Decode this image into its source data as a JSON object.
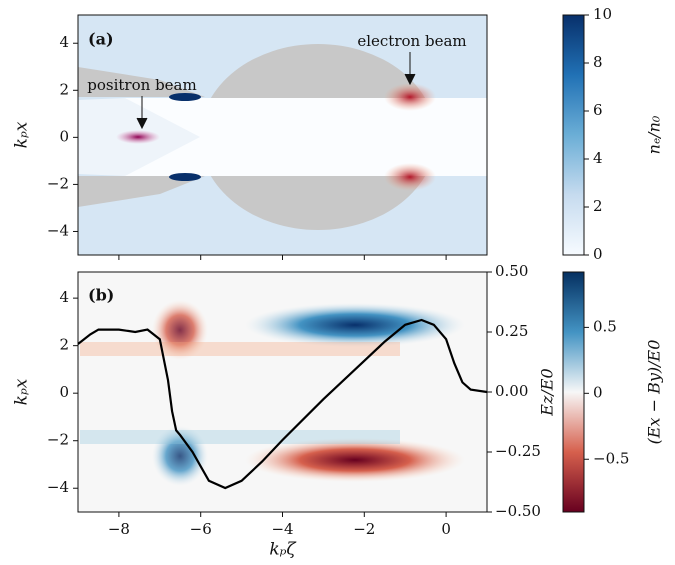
{
  "chart_data": [
    {
      "type": "heatmap",
      "panel_label": "(a)",
      "ylabel": "kₚx",
      "xlim": [
        -9,
        1
      ],
      "xticks": [
        -8,
        -6,
        -4,
        -2,
        0
      ],
      "ylim": [
        -5,
        5.2
      ],
      "yticks": [
        4,
        2,
        0,
        {
          "value": -2,
          "label": "−2"
        },
        {
          "value": -4,
          "label": "−4"
        }
      ],
      "colorbar": {
        "label": "nₑ/n₀",
        "lim": [
          0,
          10
        ],
        "ticks": [
          0,
          2,
          4,
          6,
          8,
          10
        ],
        "colors": [
          "#f7fbff",
          "#c6dbef",
          "#6baed6",
          "#2171b5",
          "#08306b"
        ]
      },
      "annotations": [
        "positron beam",
        "electron beam"
      ]
    },
    {
      "type": "line",
      "panel_label": "(b)",
      "ylabel": "kₚx",
      "xlabel": "kₚζ",
      "y2label": "Ez/E0",
      "xlim": [
        -9,
        1
      ],
      "xticks": [
        {
          "value": -8,
          "label": "−8"
        },
        {
          "value": -6,
          "label": "−6"
        },
        {
          "value": -4,
          "label": "−4"
        },
        {
          "value": -2,
          "label": "−2"
        },
        0
      ],
      "ylim": [
        -5,
        5.1
      ],
      "yticks": [
        4,
        2,
        0,
        {
          "value": -2,
          "label": "−2"
        },
        {
          "value": -4,
          "label": "−4"
        }
      ],
      "y2lim": [
        -0.5,
        0.5
      ],
      "y2ticks": [
        {
          "value": 0.5,
          "label": "0.50"
        },
        {
          "value": 0.25,
          "label": "0.25"
        },
        {
          "value": 0,
          "label": "0.00"
        },
        {
          "value": -0.25,
          "label": "−0.25"
        },
        {
          "value": -0.5,
          "label": "−0.50"
        }
      ],
      "x": [
        -9,
        -8.7,
        -8.5,
        -8,
        -7.6,
        -7.3,
        -7.0,
        -6.8,
        -6.7,
        -6.6,
        -6.5,
        -6.2,
        -5.8,
        -5.4,
        -5.0,
        -4.5,
        -4,
        -3,
        -2,
        -1.5,
        -1,
        -0.6,
        -0.3,
        0,
        0.2,
        0.4,
        0.6,
        1.0
      ],
      "series": [
        {
          "color": "#000000",
          "axis": "y2",
          "values": [
            0.2,
            0.24,
            0.26,
            0.26,
            0.25,
            0.26,
            0.22,
            0.05,
            -0.08,
            -0.16,
            -0.18,
            -0.25,
            -0.37,
            -0.4,
            -0.37,
            -0.29,
            -0.2,
            -0.03,
            0.13,
            0.21,
            0.28,
            0.3,
            0.28,
            0.22,
            0.12,
            0.04,
            0.01,
            0.0
          ]
        }
      ],
      "colorbar": {
        "label": "(Ex − By)/E0",
        "lim": [
          -0.9,
          0.92
        ],
        "ticks": [
          0.5,
          0.0,
          {
            "value": -0.5,
            "label": "−0.5"
          }
        ],
        "colors": [
          "#67001f",
          "#d6604d",
          "#f7f7f7",
          "#4393c3",
          "#053061"
        ]
      }
    }
  ]
}
